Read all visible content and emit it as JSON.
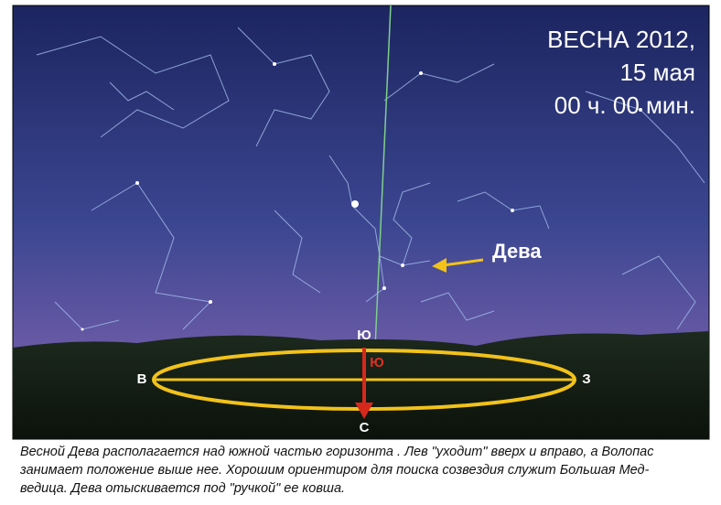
{
  "sky_map": {
    "date_lines": [
      "ВЕСНА 2012,",
      "15 мая",
      "00 ч. 00 мин."
    ],
    "constellation_label": "Дева",
    "directions": {
      "south": "Ю",
      "south_inner": "Ю",
      "east": "В",
      "west": "З",
      "north": "С"
    }
  },
  "caption": {
    "lines": [
      "Весной Дева располагается над южной частью горизонта . Лев \"уходит\" вверх и вправо, а Волопас",
      "занимает положение выше нее. Хорошим ориентиром для поиска созвездия служит Большая Мед-",
      "ведица. Дева отыскивается под \"ручкой\" ее ковша."
    ]
  }
}
